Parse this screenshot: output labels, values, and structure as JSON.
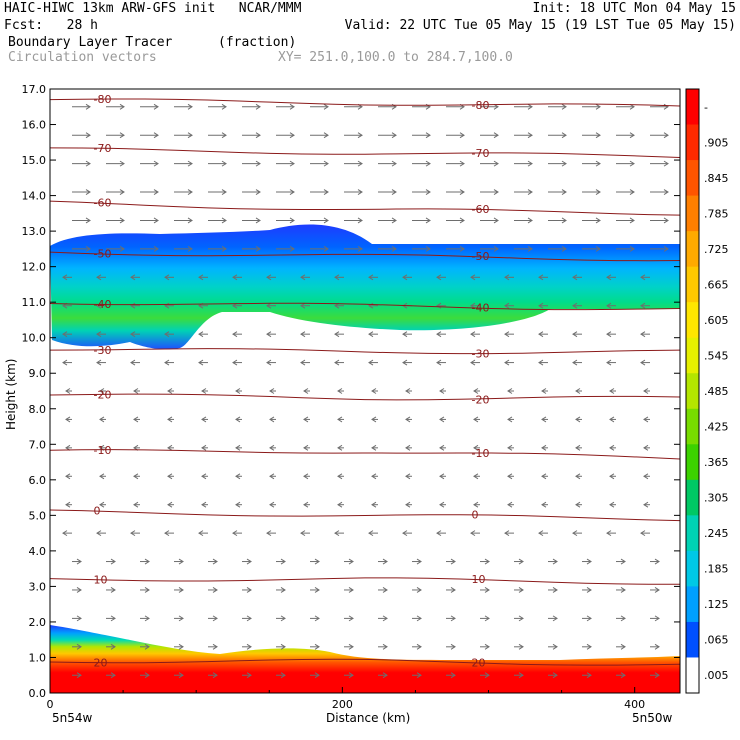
{
  "header": {
    "line1_left": "HAIC-HIWC 13km ARW-GFS init   NCAR/MMM",
    "line1_right": "Init: 18 UTC Mon 04 May 15",
    "line2_left": "Fcst:   28 h",
    "line2_right": "Valid: 22 UTC Tue 05 May 15 (19 LST Tue 05 May 15)",
    "field_name": "Boundary Layer Tracer",
    "field_units": "(fraction)",
    "vectors_label": "Circulation vectors",
    "xy_label": "XY= 251.0,100.0 to 284.7,100.0"
  },
  "chart_data": {
    "type": "heatmap",
    "xlabel": "Distance (km)",
    "ylabel": "Height (km)",
    "xlim": [
      0,
      431
    ],
    "ylim": [
      0,
      17
    ],
    "x_ticks": [
      {
        "value": 0,
        "label": "0"
      },
      {
        "value": 200,
        "label": "200"
      },
      {
        "value": 400,
        "label": "400"
      }
    ],
    "x_end_labels": [
      "5n54w",
      "5n50w"
    ],
    "y_ticks": [
      "0.0",
      "1.0",
      "2.0",
      "3.0",
      "4.0",
      "5.0",
      "6.0",
      "7.0",
      "8.0",
      "9.0",
      "10.0",
      "11.0",
      "12.0",
      "13.0",
      "14.0",
      "15.0",
      "16.0",
      "17.0"
    ],
    "colorbar_labels": [
      "-",
      ".905",
      ".845",
      ".785",
      ".725",
      ".665",
      ".605",
      ".545",
      ".485",
      ".425",
      ".365",
      ".305",
      ".245",
      ".185",
      ".125",
      ".065",
      ".005"
    ],
    "colorbar_colors": [
      "#ff0000",
      "#ff2a00",
      "#ff5500",
      "#ff7f00",
      "#ffaa00",
      "#ffc800",
      "#ffe600",
      "#e6f000",
      "#b4e600",
      "#78dc00",
      "#3cd200",
      "#00c864",
      "#00d2b4",
      "#00c8e6",
      "#00a0ff",
      "#0050ff",
      "#ffffff"
    ],
    "isotherms": [
      {
        "label": "-80",
        "heights": [
          16.7,
          16.6,
          16.5
        ]
      },
      {
        "label": "-70",
        "heights": [
          15.3,
          15.2,
          15.1
        ]
      },
      {
        "label": "-60",
        "heights": [
          13.8,
          13.6,
          13.5
        ]
      },
      {
        "label": "-50",
        "heights": [
          12.4,
          12.3,
          12.2
        ]
      },
      {
        "label": "-40",
        "heights": [
          11.0,
          10.9,
          10.8
        ]
      },
      {
        "label": "-30",
        "heights": [
          9.7,
          9.6,
          9.6
        ]
      },
      {
        "label": "-20",
        "heights": [
          8.4,
          8.3,
          8.3
        ]
      },
      {
        "label": "-10",
        "heights": [
          6.8,
          6.8,
          6.6
        ]
      },
      {
        "label": "0",
        "heights": [
          5.1,
          5.0,
          4.9
        ]
      },
      {
        "label": "10",
        "heights": [
          3.2,
          3.2,
          3.1
        ]
      },
      {
        "label": "20",
        "heights": [
          0.9,
          0.9,
          0.8
        ]
      }
    ],
    "tracer_bands": [
      {
        "name": "upper",
        "bottom_km": 10.3,
        "top_km": 12.6,
        "max_fraction": 0.305
      },
      {
        "name": "boundary_layer",
        "bottom_km": 0.0,
        "top_km": 1.9,
        "max_fraction": 0.905
      }
    ],
    "vector_rows_km": [
      16.5,
      15.7,
      14.9,
      14.1,
      13.3,
      12.5,
      11.7,
      10.9,
      10.1,
      9.3,
      8.5,
      7.7,
      6.9,
      6.1,
      5.3,
      4.5,
      3.7,
      2.9,
      2.1,
      1.3,
      0.5
    ]
  }
}
